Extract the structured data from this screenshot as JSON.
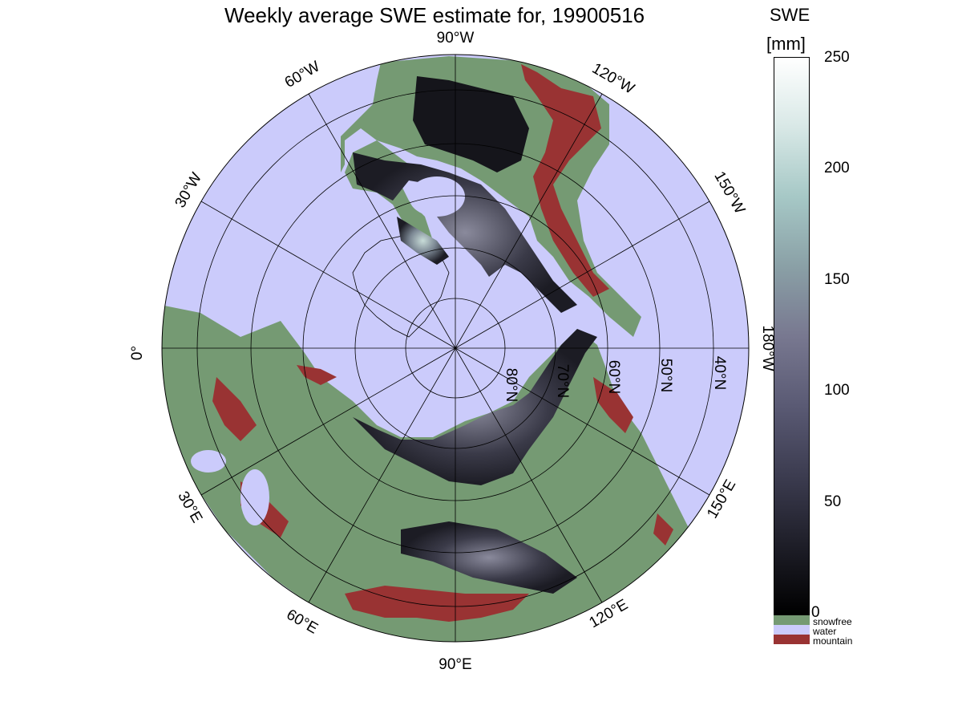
{
  "title": "Weekly average SWE estimate for, 19900516",
  "colorbar": {
    "title": "SWE",
    "unit": "[mm]",
    "ticks": [
      "250",
      "200",
      "150",
      "100",
      "50",
      "0"
    ],
    "gradient": [
      "#000000",
      "#1e1e28",
      "#3c3c50",
      "#5a5a74",
      "#787890",
      "#8aa0a6",
      "#a6c8c6",
      "#d8e8e6",
      "#ffffff"
    ],
    "range": [
      0,
      250
    ]
  },
  "legend": [
    {
      "label": "snowfree",
      "color": "#759a73"
    },
    {
      "label": "water",
      "color": "#cbcbfb"
    },
    {
      "label": "mountain",
      "color": "#993333"
    }
  ],
  "map": {
    "projection": "north polar stereographic",
    "ocean_color": "#cbcbfb",
    "land_color": "#759a73",
    "mountain_color": "#993333",
    "snow_color": "#1c1c24",
    "longitude_labels": [
      "90°W",
      "120°W",
      "150°W",
      "180°W",
      "150°E",
      "120°E",
      "90°E",
      "60°E",
      "30°E",
      "0°",
      "30°W",
      "60°W"
    ],
    "latitude_labels": [
      "80°N",
      "70°N",
      "60°N",
      "50°N",
      "40°N"
    ]
  }
}
